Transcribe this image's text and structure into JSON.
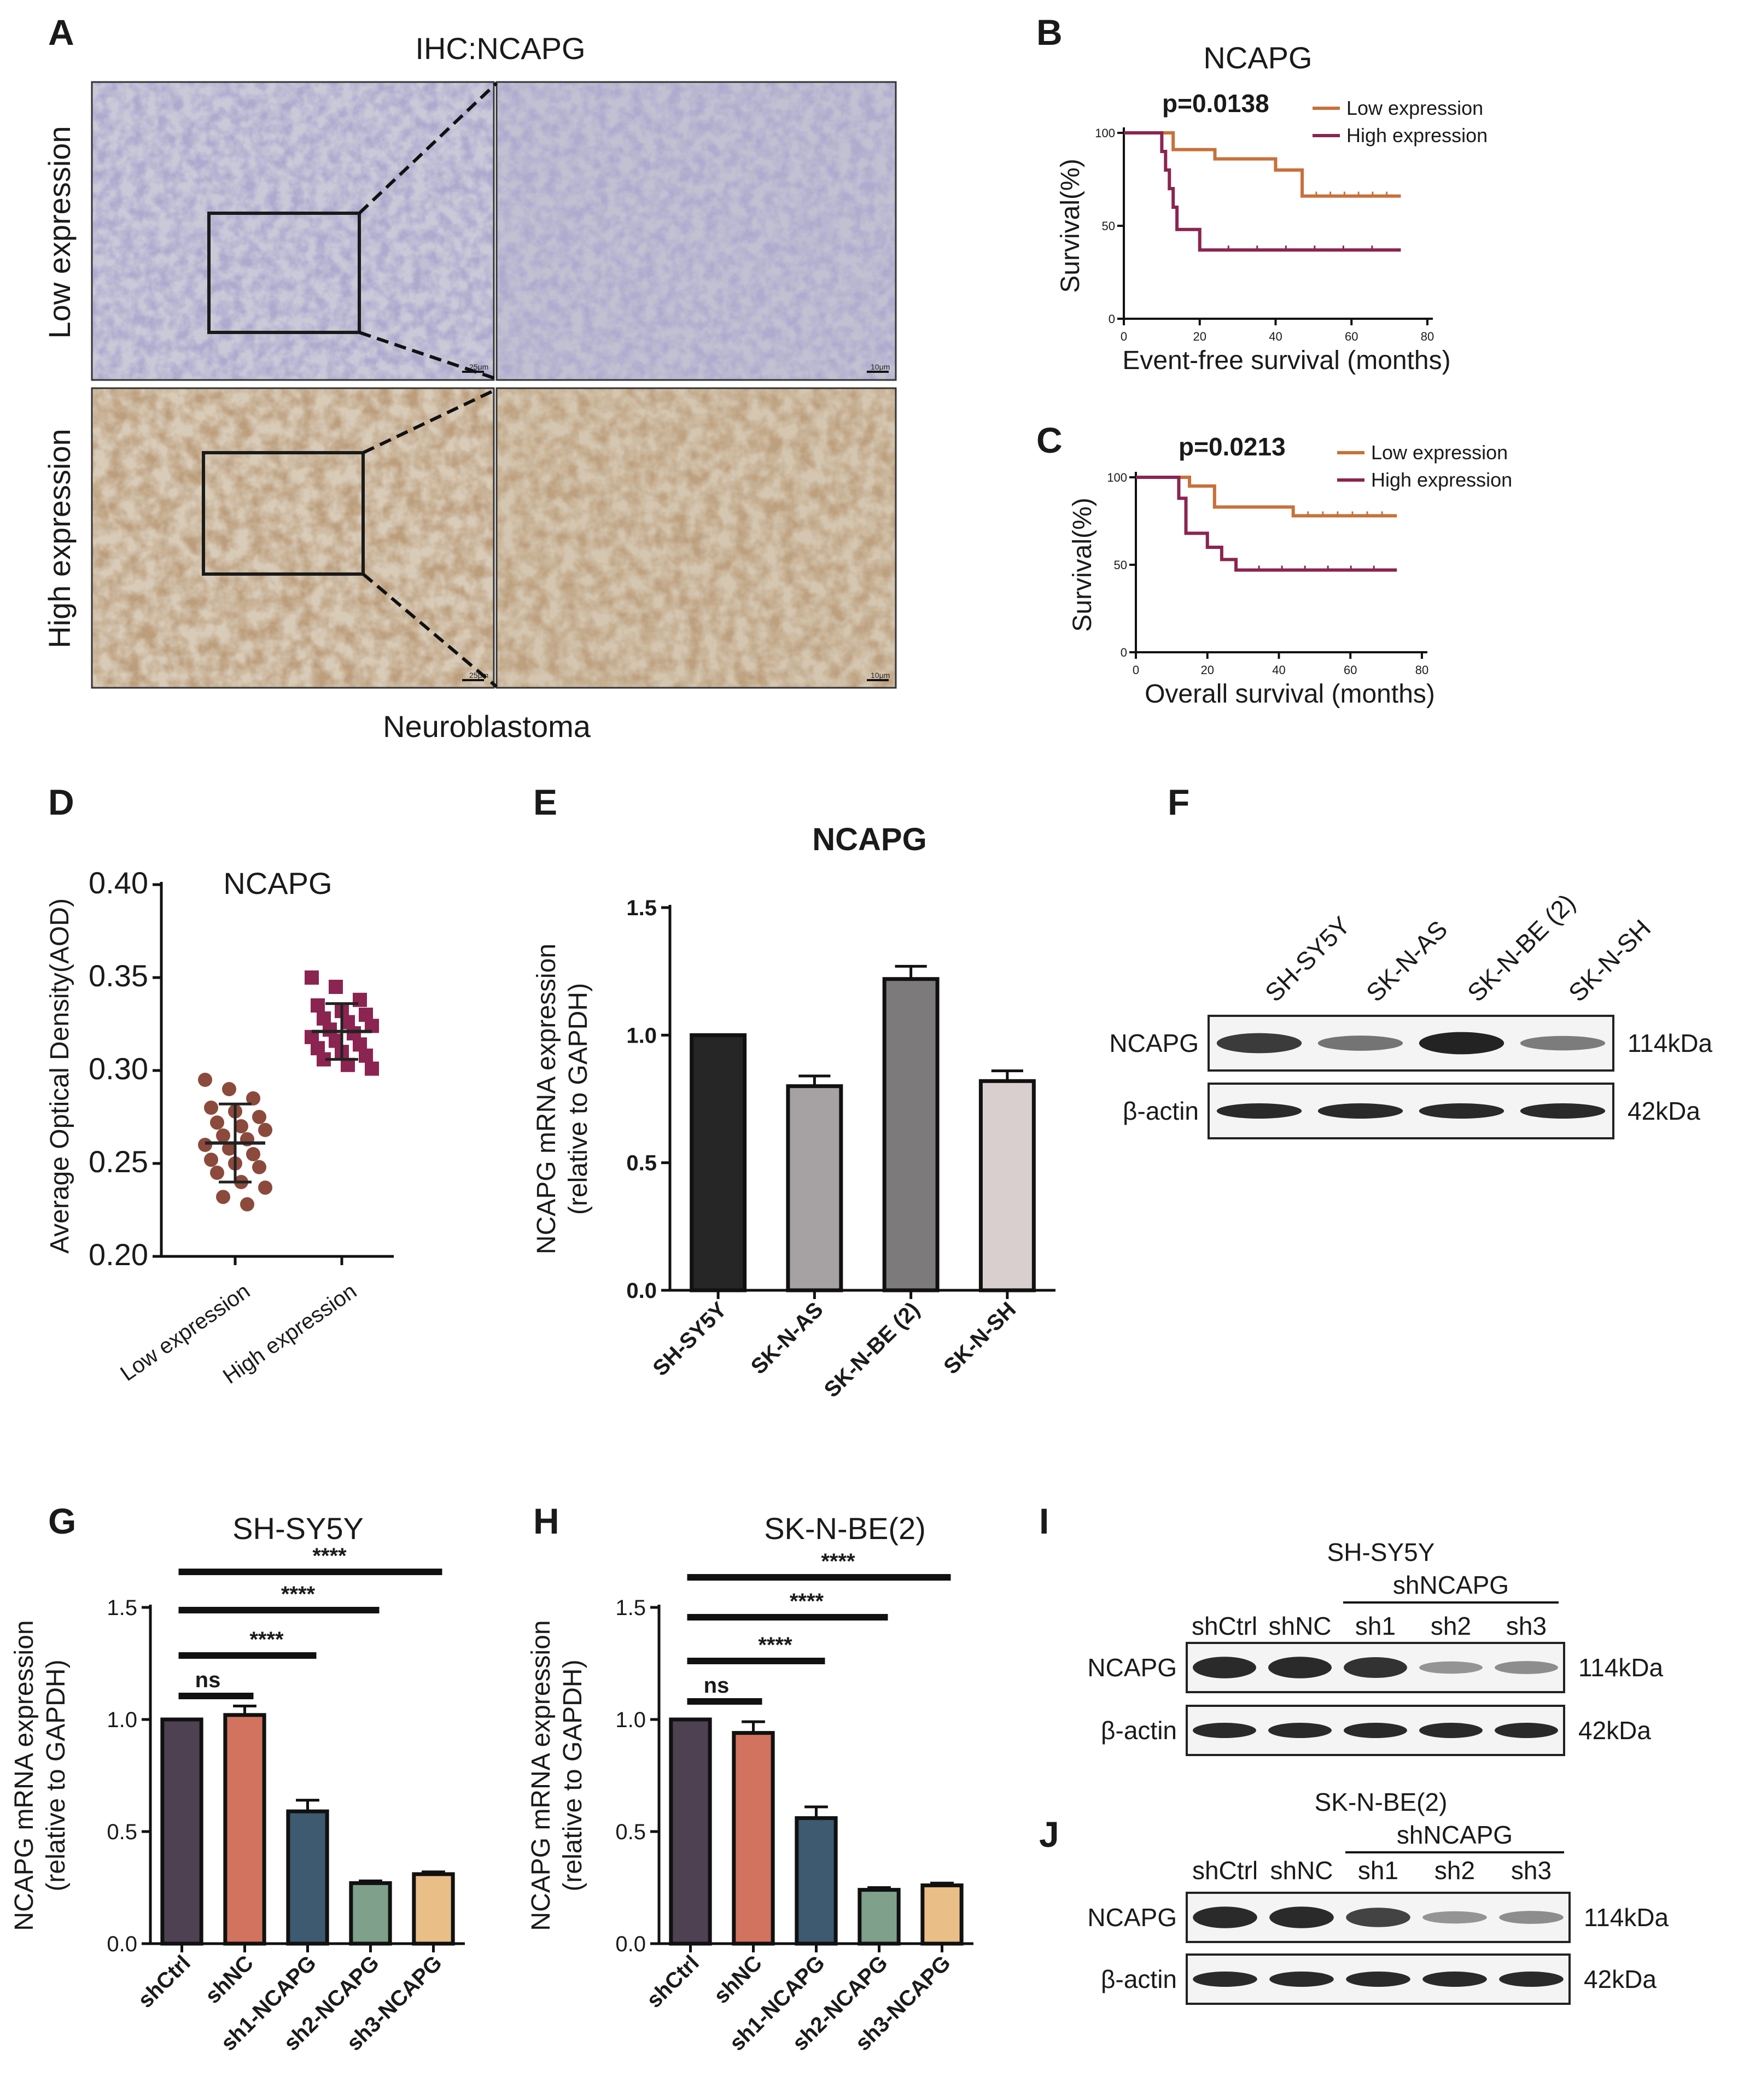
{
  "panels": {
    "A": {
      "label": "A",
      "title": "IHC:NCAPG",
      "row_labels": [
        "Low expression",
        "High expression"
      ],
      "footer": "Neuroblastoma",
      "scale_bars": [
        "25μm",
        "10μm",
        "25μm",
        "10μm"
      ]
    },
    "B": {
      "label": "B"
    },
    "C": {
      "label": "C"
    },
    "D": {
      "label": "D"
    },
    "E": {
      "label": "E"
    },
    "F": {
      "label": "F",
      "lanes": [
        "SH-SY5Y",
        "SK-N-AS",
        "SK-N-BE (2)",
        "SK-N-SH"
      ],
      "rows": [
        "NCAPG",
        "β-actin"
      ],
      "sizes": [
        "114kDa",
        "42kDa"
      ],
      "ncapg_intensity": [
        0.8,
        0.45,
        0.95,
        0.4
      ]
    },
    "G": {
      "label": "G"
    },
    "H": {
      "label": "H"
    },
    "I": {
      "label": "I",
      "cell_line": "SH-SY5Y",
      "group_label": "shNCAPG",
      "lanes": [
        "shCtrl",
        "shNC",
        "sh1",
        "sh2",
        "sh3"
      ],
      "rows": [
        "NCAPG",
        "β-actin"
      ],
      "sizes": [
        "114kDa",
        "42kDa"
      ],
      "ncapg_intensity": [
        0.9,
        0.9,
        0.85,
        0.25,
        0.3
      ]
    },
    "J": {
      "label": "J",
      "cell_line": "SK-N-BE(2)",
      "group_label": "shNCAPG",
      "lanes": [
        "shCtrl",
        "shNC",
        "sh1",
        "sh2",
        "sh3"
      ],
      "rows": [
        "NCAPG",
        "β-actin"
      ],
      "sizes": [
        "114kDa",
        "42kDa"
      ],
      "ncapg_intensity": [
        0.9,
        0.9,
        0.75,
        0.25,
        0.3
      ]
    }
  },
  "chart_data": [
    {
      "panel": "B",
      "type": "line",
      "title": "NCAPG",
      "xlabel": "Event-free survival (months)",
      "ylabel": "Survival(%)",
      "xlim": [
        0,
        80
      ],
      "ylim": [
        0,
        100
      ],
      "xticks": [
        0,
        20,
        40,
        60,
        80
      ],
      "yticks": [
        0,
        50,
        100
      ],
      "annotation": "p=0.0138",
      "series": [
        {
          "name": "Low expression",
          "color": "#c8703a",
          "x": [
            0,
            10,
            13,
            18,
            24,
            30,
            40,
            44,
            47,
            73
          ],
          "y": [
            100,
            100,
            91,
            91,
            86,
            86,
            80,
            80,
            66,
            66
          ]
        },
        {
          "name": "High expression",
          "color": "#8b2450",
          "x": [
            0,
            8,
            10,
            11,
            12,
            13,
            14,
            17,
            20,
            73
          ],
          "y": [
            100,
            100,
            90,
            80,
            70,
            60,
            48,
            48,
            37,
            37
          ]
        }
      ]
    },
    {
      "panel": "C",
      "type": "line",
      "title": "",
      "xlabel": "Overall survival (months)",
      "ylabel": "Survival(%)",
      "xlim": [
        0,
        80
      ],
      "ylim": [
        0,
        100
      ],
      "xticks": [
        0,
        20,
        40,
        60,
        80
      ],
      "yticks": [
        0,
        50,
        100
      ],
      "annotation": "p=0.0213",
      "series": [
        {
          "name": "Low expression",
          "color": "#c8703a",
          "x": [
            0,
            13,
            15,
            20,
            22,
            42,
            44,
            73
          ],
          "y": [
            100,
            100,
            95,
            95,
            83,
            83,
            78,
            78
          ]
        },
        {
          "name": "High expression",
          "color": "#8b2450",
          "x": [
            0,
            10,
            12,
            14,
            20,
            24,
            28,
            73
          ],
          "y": [
            100,
            100,
            88,
            68,
            60,
            53,
            47,
            47
          ]
        }
      ]
    },
    {
      "panel": "D",
      "type": "scatter",
      "title": "NCAPG",
      "xlabel": "",
      "ylabel": "Average Optical Density(AOD)",
      "ylim": [
        0.2,
        0.4
      ],
      "yticks": [
        "0.20",
        "0.25",
        "0.30",
        "0.35",
        "0.40"
      ],
      "categories": [
        "Low expression",
        "High expression"
      ],
      "series": [
        {
          "name": "Low expression",
          "color": "#8b4a3c",
          "marker": "circle",
          "mean": 0.261,
          "sd": 0.021,
          "values": [
            0.295,
            0.29,
            0.285,
            0.28,
            0.278,
            0.275,
            0.272,
            0.27,
            0.268,
            0.265,
            0.263,
            0.26,
            0.258,
            0.255,
            0.252,
            0.25,
            0.248,
            0.245,
            0.24,
            0.237,
            0.232,
            0.228
          ]
        },
        {
          "name": "High expression",
          "color": "#8b2450",
          "marker": "square",
          "mean": 0.321,
          "sd": 0.015,
          "values": [
            0.35,
            0.345,
            0.338,
            0.335,
            0.332,
            0.33,
            0.328,
            0.326,
            0.324,
            0.322,
            0.32,
            0.318,
            0.316,
            0.314,
            0.312,
            0.31,
            0.308,
            0.306,
            0.303,
            0.301
          ]
        }
      ]
    },
    {
      "panel": "E",
      "type": "bar",
      "title": "NCAPG",
      "ylabel": "NCAPG mRNA expression\n(relative to GAPDH)",
      "ylim": [
        0,
        1.5
      ],
      "yticks": [
        "0.0",
        "0.5",
        "1.0",
        "1.5"
      ],
      "categories": [
        "SH-SY5Y",
        "SK-N-AS",
        "SK-N-BE (2)",
        "SK-N-SH"
      ],
      "values": [
        1.0,
        0.8,
        1.22,
        0.82
      ],
      "errors": [
        0,
        0.04,
        0.05,
        0.04
      ],
      "colors": [
        "#262626",
        "#a6a2a4",
        "#7d7a7b",
        "#d9cfcf"
      ]
    },
    {
      "panel": "G",
      "type": "bar",
      "title": "SH-SY5Y",
      "ylabel": "NCAPG mRNA expression\n(relative to GAPDH)",
      "ylim": [
        0,
        1.5
      ],
      "yticks": [
        "0.0",
        "0.5",
        "1.0",
        "1.5"
      ],
      "categories": [
        "shCtrl",
        "shNC",
        "sh1-NCAPG",
        "sh2-NCAPG",
        "sh3-NCAPG"
      ],
      "values": [
        1.0,
        1.02,
        0.59,
        0.27,
        0.31
      ],
      "errors": [
        0,
        0.04,
        0.05,
        0.01,
        0.01
      ],
      "colors": [
        "#4d4152",
        "#d2735f",
        "#3d5a70",
        "#7fa08a",
        "#e9be87"
      ],
      "significance": [
        {
          "from": 0,
          "to": 1,
          "label": "ns"
        },
        {
          "from": 0,
          "to": 2,
          "label": "****"
        },
        {
          "from": 0,
          "to": 3,
          "label": "****"
        },
        {
          "from": 0,
          "to": 4,
          "label": "****"
        }
      ]
    },
    {
      "panel": "H",
      "type": "bar",
      "title": "SK-N-BE(2)",
      "ylabel": "NCAPG mRNA expression\n(relative to GAPDH)",
      "ylim": [
        0,
        1.5
      ],
      "yticks": [
        "0.0",
        "0.5",
        "1.0",
        "1.5"
      ],
      "categories": [
        "shCtrl",
        "shNC",
        "sh1-NCAPG",
        "sh2-NCAPG",
        "sh3-NCAPG"
      ],
      "values": [
        1.0,
        0.94,
        0.56,
        0.24,
        0.26
      ],
      "errors": [
        0,
        0.05,
        0.05,
        0.01,
        0.01
      ],
      "colors": [
        "#4d4152",
        "#d2735f",
        "#3d5a70",
        "#7fa08a",
        "#e9be87"
      ],
      "significance": [
        {
          "from": 0,
          "to": 1,
          "label": "ns"
        },
        {
          "from": 0,
          "to": 2,
          "label": "****"
        },
        {
          "from": 0,
          "to": 3,
          "label": "****"
        },
        {
          "from": 0,
          "to": 4,
          "label": "****"
        }
      ]
    }
  ]
}
